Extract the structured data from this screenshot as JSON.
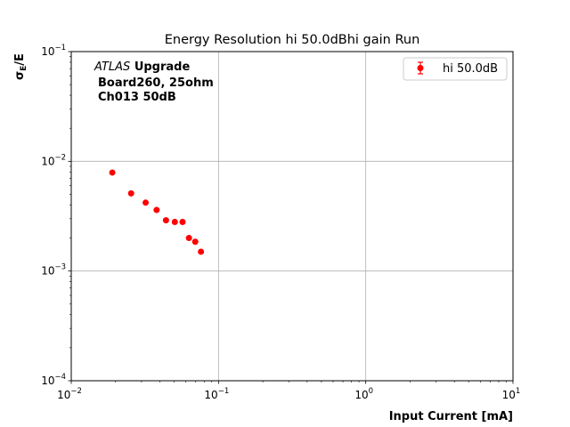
{
  "chart_data": {
    "type": "scatter",
    "title": "Energy Resolution hi 50.0dBhi gain Run",
    "xlabel": "Input Current [mA]",
    "ylabel": "σ_E/E",
    "ylabel_main": "σ",
    "ylabel_sub": "E",
    "ylabel_tail": "/E",
    "xscale": "log",
    "yscale": "log",
    "xlim": [
      0.01,
      10
    ],
    "ylim": [
      0.0001,
      0.1
    ],
    "xticks": [
      {
        "base": "10",
        "exp": "−2"
      },
      {
        "base": "10",
        "exp": "−1"
      },
      {
        "base": "10",
        "exp": "0"
      },
      {
        "base": "10",
        "exp": "1"
      }
    ],
    "yticks": [
      {
        "base": "10",
        "exp": "−4"
      },
      {
        "base": "10",
        "exp": "−3"
      },
      {
        "base": "10",
        "exp": "−2"
      },
      {
        "base": "10",
        "exp": "−1"
      }
    ],
    "grid": true,
    "legend_position": "top-right",
    "annotation": {
      "italic": "ATLAS",
      "bold": "Upgrade",
      "line2": "Board260, 25ohm",
      "line3": "Ch013 50dB"
    },
    "series": [
      {
        "name": "hi 50.0dB",
        "color": "#ff0000",
        "x": [
          0.019,
          0.0255,
          0.032,
          0.038,
          0.044,
          0.0505,
          0.057,
          0.063,
          0.0695,
          0.076
        ],
        "y": [
          0.0079,
          0.0051,
          0.0042,
          0.0036,
          0.0029,
          0.0028,
          0.0028,
          0.002,
          0.00185,
          0.0015
        ]
      }
    ]
  }
}
